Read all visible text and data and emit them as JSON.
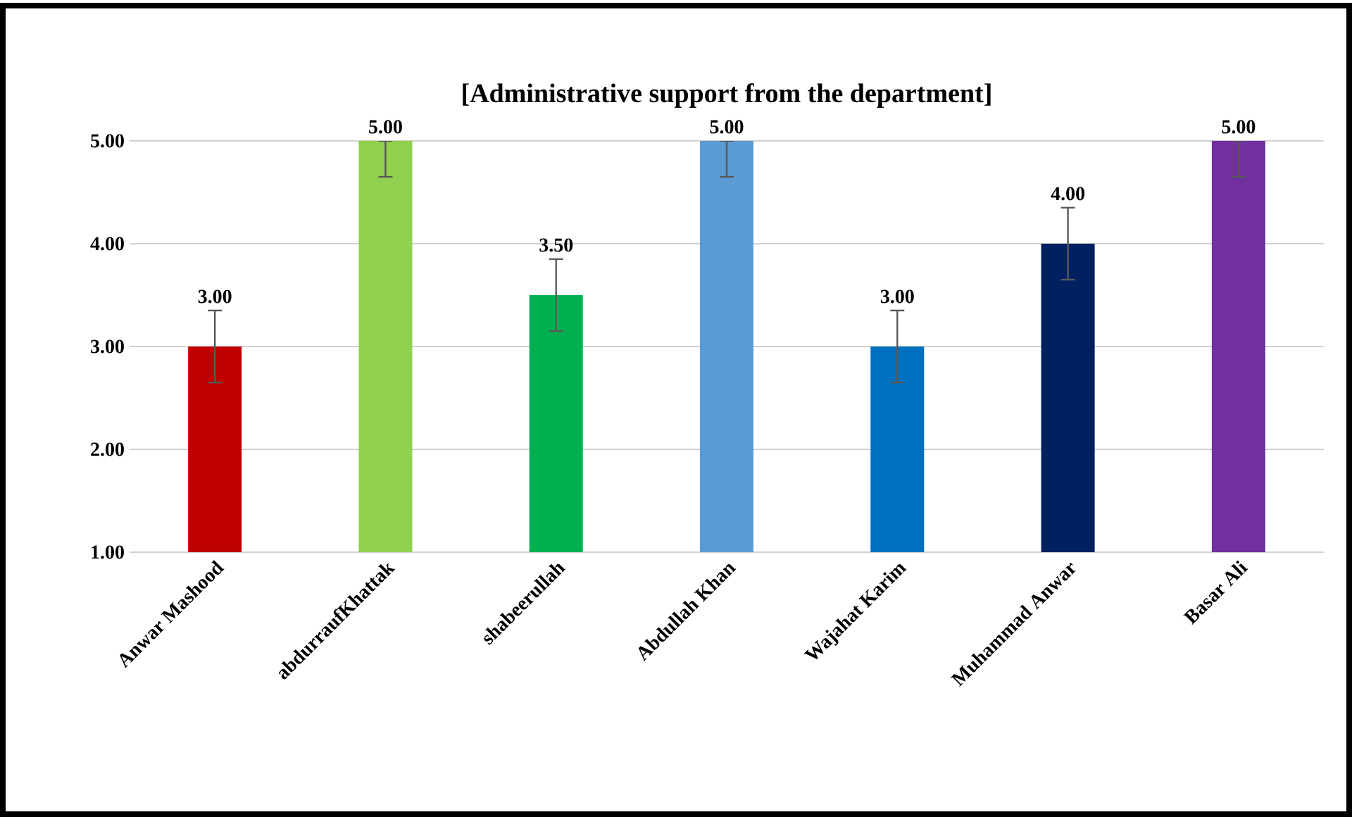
{
  "chart_data": {
    "type": "bar",
    "title": "[Administrative support from the department]",
    "categories": [
      "Anwar Mashood",
      "abdurraufKhattak",
      "shabeerullah",
      "Abdullah Khan",
      "Wajahat Karim",
      "Muhammad Anwar",
      "Basar Ali"
    ],
    "values": [
      3,
      5,
      3.5,
      5,
      3,
      4,
      5
    ],
    "colors": [
      "#c00000",
      "#92d050",
      "#00b050",
      "#5b9bd5",
      "#0070c0",
      "#002060",
      "#7030a0"
    ],
    "errors": [
      [
        2.65,
        3.35
      ],
      [
        4.65,
        5
      ],
      [
        3.15,
        3.85
      ],
      [
        4.65,
        5
      ],
      [
        2.65,
        3.35
      ],
      [
        3.65,
        4.35
      ],
      [
        4.65,
        5
      ]
    ],
    "value_labels": [
      "3.00",
      "5.00",
      "3.50",
      "5.00",
      "3.00",
      "4.00",
      "5.00"
    ],
    "ylim": [
      1,
      5
    ],
    "yticks": [
      {
        "value": 1,
        "label": "1.00"
      },
      {
        "value": 2,
        "label": "2.00"
      },
      {
        "value": 3,
        "label": "3.00"
      },
      {
        "value": 4,
        "label": "4.00"
      },
      {
        "value": 5,
        "label": "5.00"
      }
    ],
    "grid": "y"
  }
}
